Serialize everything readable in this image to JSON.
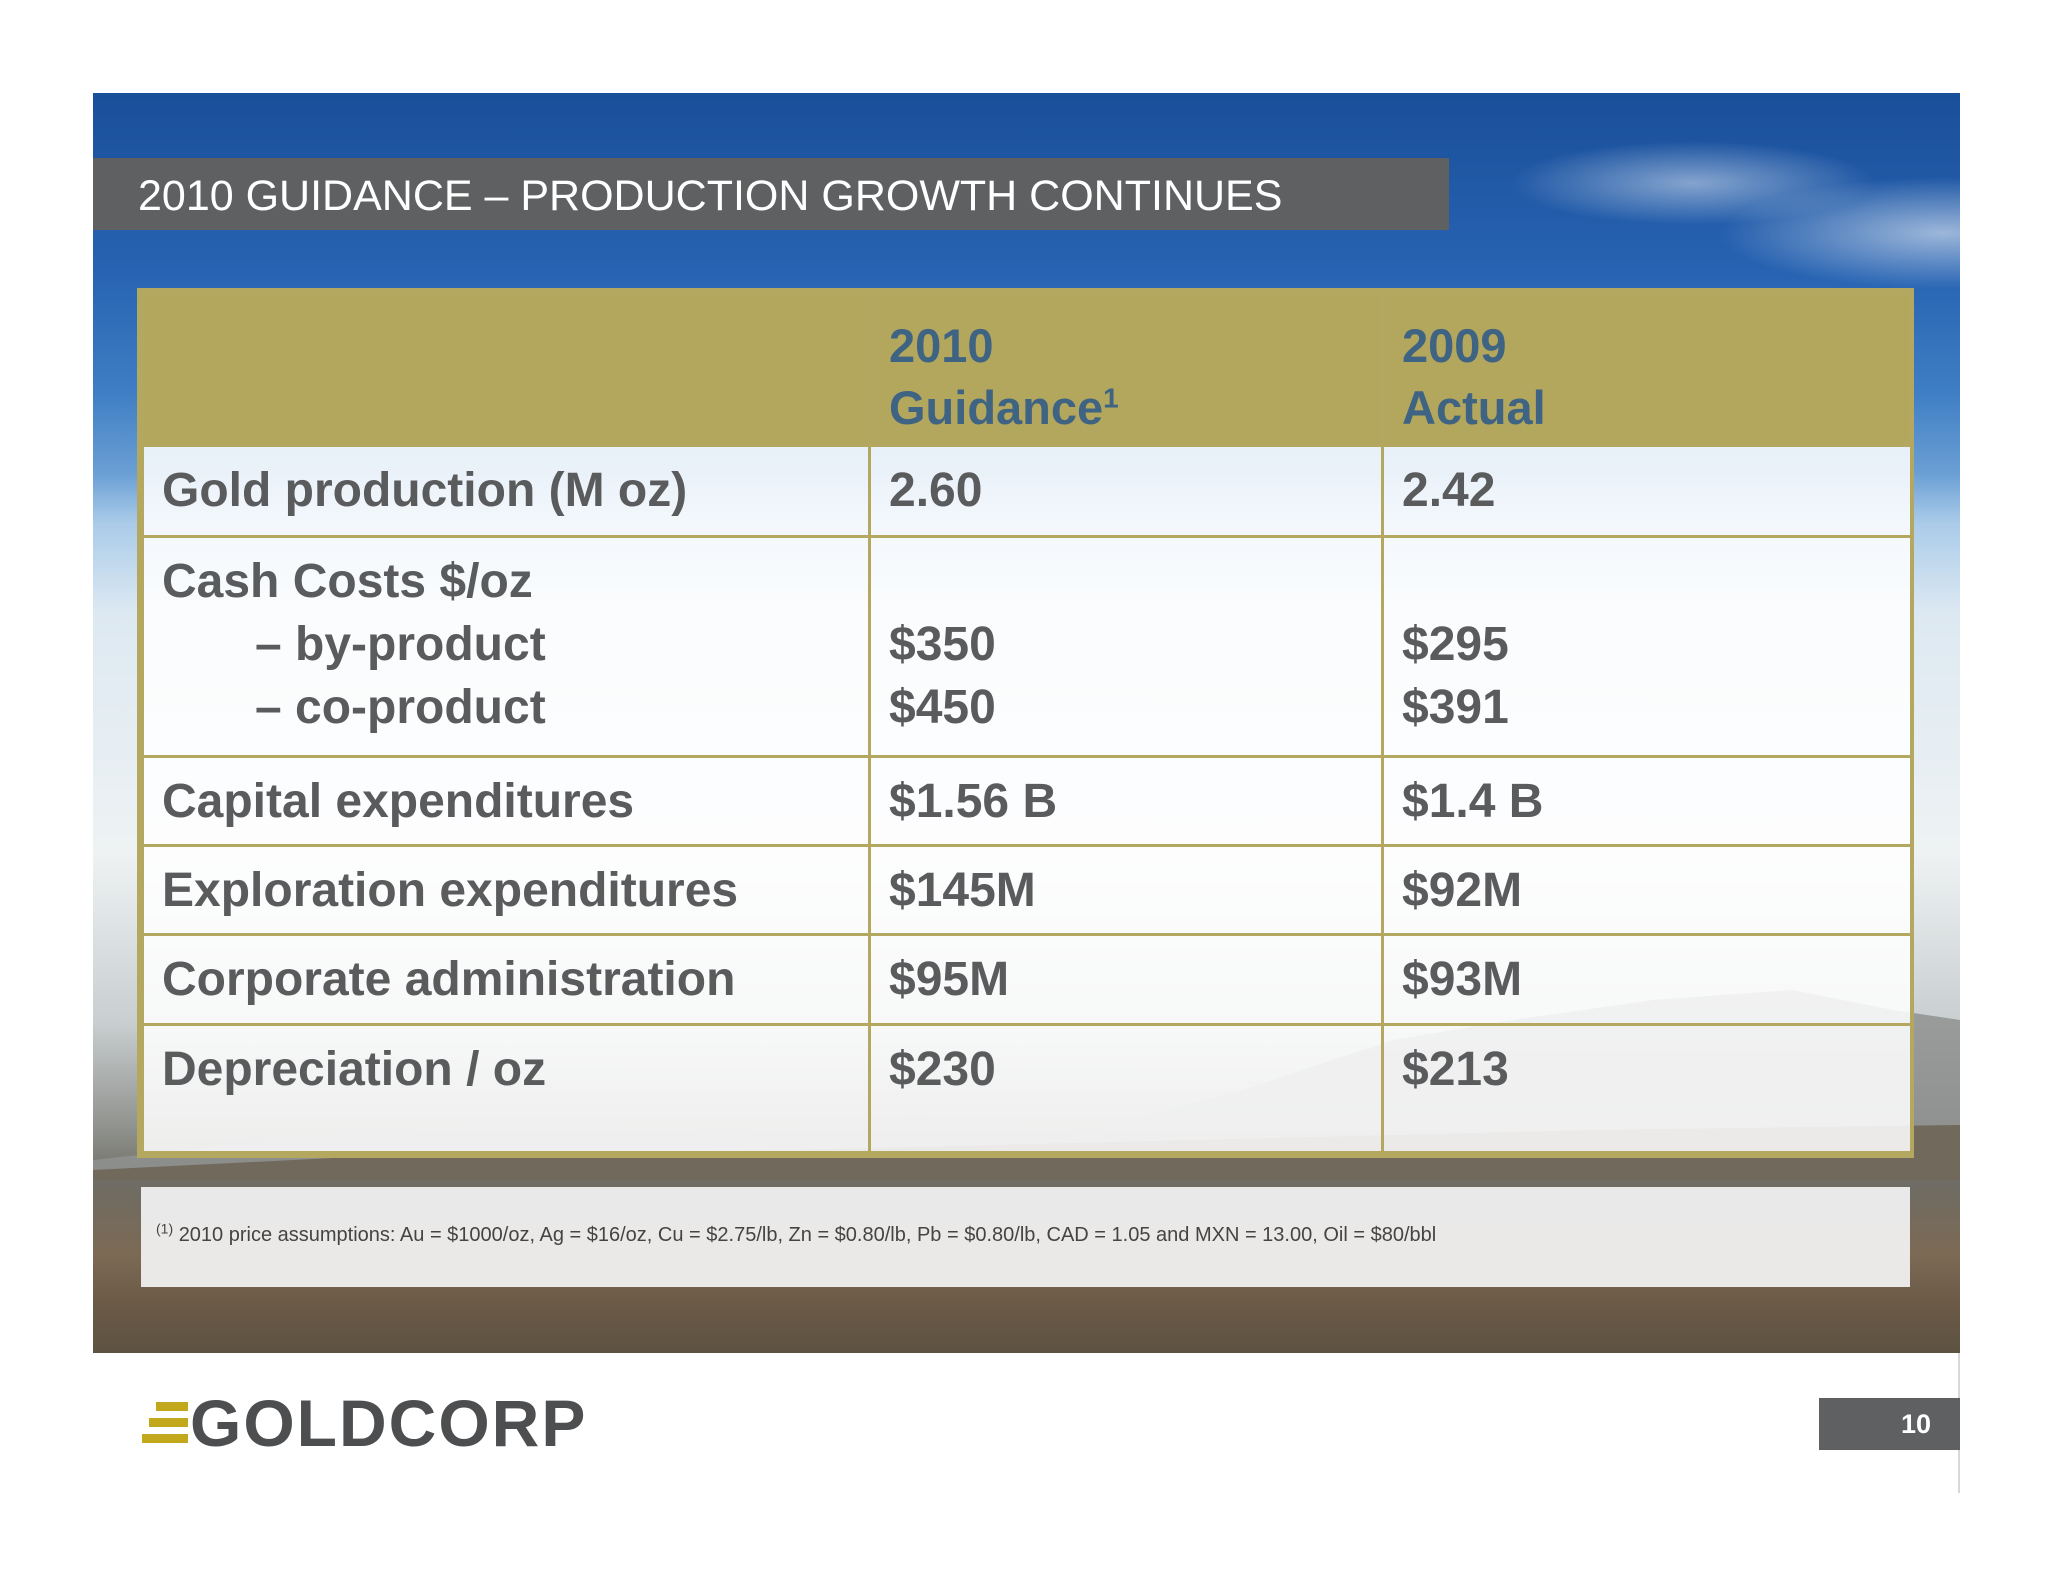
{
  "title": "2010 GUIDANCE – PRODUCTION GROWTH CONTINUES",
  "table": {
    "headers": {
      "col1_year": "2010",
      "col1_label": "Guidance",
      "col1_note": "1",
      "col2_year": "2009",
      "col2_label": "Actual"
    },
    "rows": [
      {
        "label": "Gold production (M oz)",
        "guidance": "2.60",
        "actual": "2.42"
      },
      {
        "label": "Cash Costs $/oz",
        "sub_labels": [
          "– by-product",
          "– co-product"
        ],
        "guidance_values": [
          "$350",
          "$450"
        ],
        "actual_values": [
          "$295",
          "$391"
        ]
      },
      {
        "label": "Capital expenditures",
        "guidance": "$1.56 B",
        "actual": "$1.4 B"
      },
      {
        "label": "Exploration expenditures",
        "guidance": "$145M",
        "actual": "$92M"
      },
      {
        "label": "Corporate administration",
        "guidance": "$95M",
        "actual": "$93M"
      },
      {
        "label": "Depreciation / oz",
        "guidance": "$230",
        "actual": "$213"
      }
    ]
  },
  "footnote": {
    "marker": "(1)",
    "text": "2010 price assumptions: Au = $1000/oz, Ag = $16/oz, Cu = $2.75/lb, Zn = $0.80/lb, Pb = $0.80/lb, CAD = 1.05 and MXN = 13.00, Oil = $80/bbl"
  },
  "logo_text": "GOLDCORP",
  "page_number": "10",
  "colors": {
    "header_gold": "#b3a65d",
    "header_text": "#3f6382",
    "body_text": "#5a5b5d",
    "title_bar": "#5f6062",
    "logo_gold": "#c2a81c"
  }
}
